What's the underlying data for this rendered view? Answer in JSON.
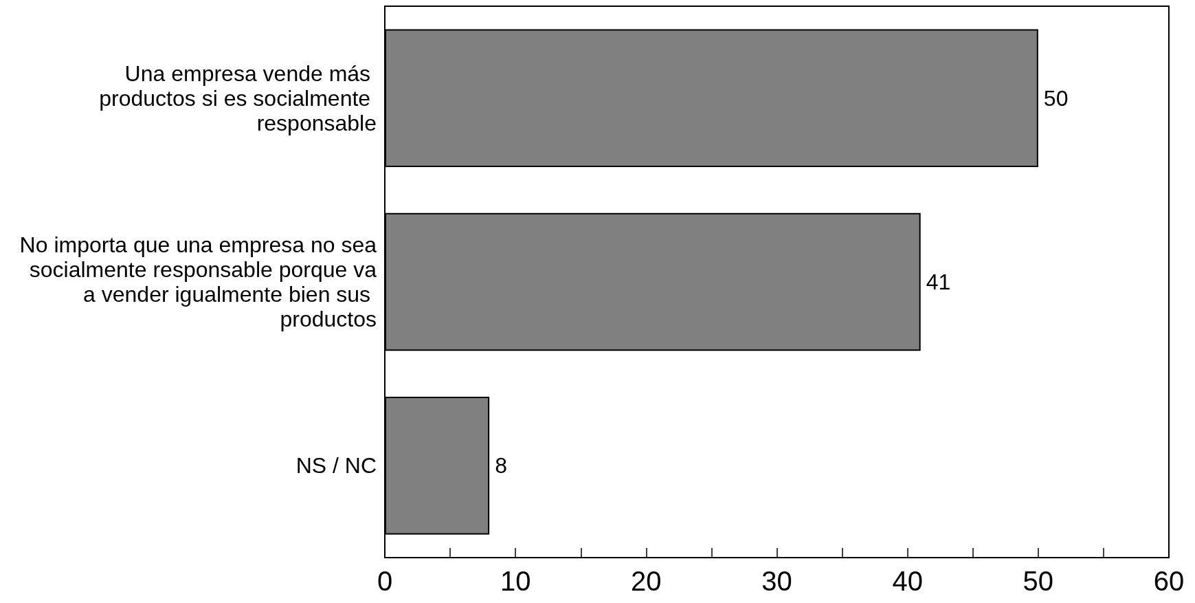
{
  "chart_data": {
    "type": "bar",
    "orientation": "horizontal",
    "categories": [
      "Una empresa vende más productos si es socialmente responsable",
      "No importa que una empresa no sea socialmente responsable porque va a vender igualmente bien sus productos",
      "NS / NC"
    ],
    "values": [
      50,
      41,
      8
    ],
    "color": "#808080",
    "xlim": [
      0,
      60
    ],
    "xticks": [
      0,
      {
        "value": 5,
        "label": null
      },
      10,
      {
        "value": 15,
        "label": null
      },
      20,
      {
        "value": 25,
        "label": null
      },
      30,
      {
        "value": 35,
        "label": null
      },
      40,
      {
        "value": 45,
        "label": null
      },
      50,
      {
        "value": 55,
        "label": null
      },
      60
    ],
    "data_labels": true,
    "grid": false
  }
}
